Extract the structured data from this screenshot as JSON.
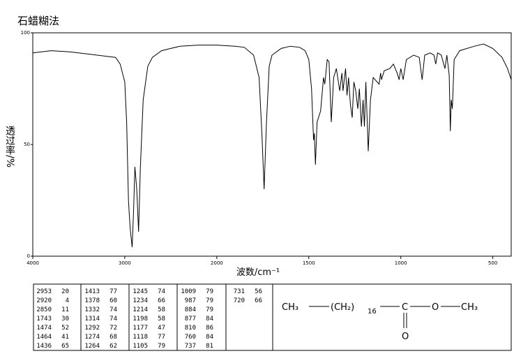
{
  "chart_data": {
    "type": "line",
    "title": "石蜡糊法",
    "xlabel": "波数/cm⁻¹",
    "ylabel": "透过率/%",
    "xlim": [
      4000,
      400
    ],
    "x_scale_change": {
      "at": 2000,
      "factor": 2
    },
    "xticks": [
      4000,
      3000,
      2000,
      1500,
      1000,
      500
    ],
    "ylim": [
      0,
      100
    ],
    "yticks": [
      0,
      50,
      100
    ],
    "grid": false,
    "color": "#000000",
    "x": [
      4000,
      3800,
      3600,
      3400,
      3200,
      3100,
      3050,
      3000,
      2980,
      2960,
      2953,
      2940,
      2920,
      2905,
      2890,
      2870,
      2850,
      2830,
      2800,
      2750,
      2700,
      2600,
      2500,
      2400,
      2200,
      2000,
      1900,
      1850,
      1800,
      1770,
      1755,
      1743,
      1730,
      1715,
      1700,
      1650,
      1600,
      1550,
      1520,
      1500,
      1485,
      1474,
      1470,
      1464,
      1455,
      1436,
      1420,
      1413,
      1400,
      1390,
      1378,
      1365,
      1350,
      1332,
      1320,
      1314,
      1300,
      1292,
      1284,
      1274,
      1264,
      1255,
      1245,
      1234,
      1225,
      1214,
      1205,
      1198,
      1190,
      1177,
      1165,
      1150,
      1118,
      1110,
      1105,
      1090,
      1060,
      1040,
      1020,
      1009,
      1000,
      987,
      970,
      930,
      900,
      884,
      870,
      840,
      820,
      810,
      800,
      780,
      760,
      750,
      737,
      731,
      726,
      720,
      710,
      680,
      600,
      550,
      500,
      450,
      420,
      400
    ],
    "values": [
      91,
      92,
      91.5,
      90.5,
      89.5,
      89,
      86,
      78,
      60,
      25,
      20,
      12,
      4,
      20,
      40,
      30,
      11,
      40,
      70,
      85,
      89,
      92,
      93,
      94,
      94.5,
      94.5,
      94,
      93.5,
      90,
      80,
      55,
      30,
      60,
      85,
      90,
      93,
      94,
      93.5,
      92,
      88,
      75,
      52,
      55,
      41,
      60,
      65,
      80,
      77,
      88,
      87,
      60,
      80,
      84,
      74,
      82,
      74,
      84,
      72,
      80,
      68,
      62,
      78,
      74,
      66,
      75,
      58,
      70,
      58,
      78,
      47,
      70,
      80,
      77,
      82,
      79,
      83,
      84,
      86,
      82,
      79,
      84,
      79,
      88,
      90,
      89,
      79,
      90,
      91,
      90,
      86,
      91,
      90,
      84,
      90,
      81,
      56,
      70,
      66,
      88,
      92,
      94,
      95,
      93,
      89,
      84,
      79
    ]
  },
  "peak_table": {
    "rows": [
      [
        2953,
        20
      ],
      [
        2920,
        4
      ],
      [
        2850,
        11
      ],
      [
        1743,
        30
      ],
      [
        1474,
        52
      ],
      [
        1464,
        41
      ],
      [
        1436,
        65
      ],
      [
        1413,
        77
      ],
      [
        1378,
        60
      ],
      [
        1332,
        74
      ],
      [
        1314,
        74
      ],
      [
        1292,
        72
      ],
      [
        1274,
        68
      ],
      [
        1264,
        62
      ],
      [
        1245,
        74
      ],
      [
        1234,
        66
      ],
      [
        1214,
        58
      ],
      [
        1198,
        58
      ],
      [
        1177,
        47
      ],
      [
        1118,
        77
      ],
      [
        1105,
        79
      ],
      [
        1009,
        79
      ],
      [
        987,
        79
      ],
      [
        884,
        79
      ],
      [
        877,
        84
      ],
      [
        810,
        86
      ],
      [
        760,
        84
      ],
      [
        737,
        81
      ],
      [
        731,
        56
      ],
      [
        720,
        66
      ]
    ]
  },
  "structure": {
    "left": "CH₃",
    "chain": "(CH₂)",
    "count": "16",
    "carbon": "C",
    "oxygen": "O",
    "right": "CH₃",
    "carbonyl_oxygen": "O"
  }
}
